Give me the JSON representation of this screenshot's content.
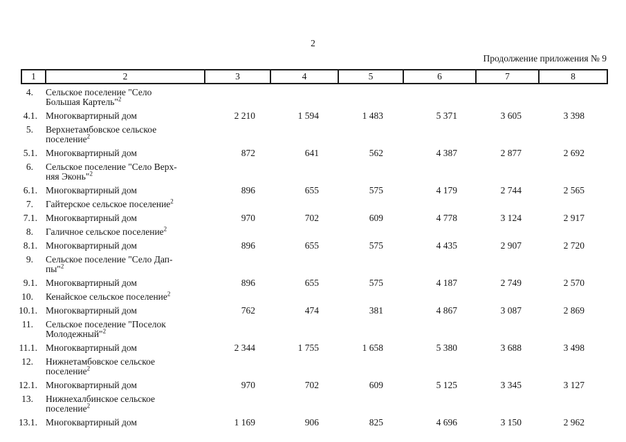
{
  "page": {
    "number": "2",
    "continuation_note": "Продолжение приложения № 9"
  },
  "table": {
    "columns": [
      "1",
      "2",
      "3",
      "4",
      "5",
      "6",
      "7",
      "8"
    ],
    "rows": [
      {
        "num": "4.",
        "kind": "settlement",
        "name_lines": [
          "Сельское поселение \"Село",
          "Большая Картель\""
        ],
        "footnote": "2",
        "values": [
          "",
          "",
          "",
          "",
          "",
          ""
        ]
      },
      {
        "num": "4.1.",
        "kind": "house",
        "name_lines": [
          "Многоквартирный дом"
        ],
        "footnote": "",
        "values": [
          "2 210",
          "1 594",
          "1 483",
          "5 371",
          "3 605",
          "3 398"
        ]
      },
      {
        "num": "5.",
        "kind": "settlement",
        "name_lines": [
          "Верхнетамбовское сельское",
          "поселение"
        ],
        "footnote": "2",
        "values": [
          "",
          "",
          "",
          "",
          "",
          ""
        ]
      },
      {
        "num": "5.1.",
        "kind": "house",
        "name_lines": [
          "Многоквартирный дом"
        ],
        "footnote": "",
        "values": [
          "872",
          "641",
          "562",
          "4 387",
          "2 877",
          "2 692"
        ]
      },
      {
        "num": "6.",
        "kind": "settlement",
        "name_lines": [
          "Сельское поселение \"Село Верх-",
          "няя Эконь\""
        ],
        "footnote": "2",
        "values": [
          "",
          "",
          "",
          "",
          "",
          ""
        ]
      },
      {
        "num": "6.1.",
        "kind": "house",
        "name_lines": [
          "Многоквартирный дом"
        ],
        "footnote": "",
        "values": [
          "896",
          "655",
          "575",
          "4 179",
          "2 744",
          "2 565"
        ]
      },
      {
        "num": "7.",
        "kind": "settlement",
        "name_lines": [
          "Гайтерское сельское поселение"
        ],
        "footnote": "2",
        "values": [
          "",
          "",
          "",
          "",
          "",
          ""
        ]
      },
      {
        "num": "7.1.",
        "kind": "house",
        "name_lines": [
          "Многоквартирный дом"
        ],
        "footnote": "",
        "values": [
          "970",
          "702",
          "609",
          "4 778",
          "3 124",
          "2 917"
        ]
      },
      {
        "num": "8.",
        "kind": "settlement",
        "name_lines": [
          "Галичное сельское поселение"
        ],
        "footnote": "2",
        "values": [
          "",
          "",
          "",
          "",
          "",
          ""
        ]
      },
      {
        "num": "8.1.",
        "kind": "house",
        "name_lines": [
          "Многоквартирный дом"
        ],
        "footnote": "",
        "values": [
          "896",
          "655",
          "575",
          "4 435",
          "2 907",
          "2 720"
        ]
      },
      {
        "num": "9.",
        "kind": "settlement",
        "name_lines": [
          "Сельское поселение \"Село Дап-",
          "пы\""
        ],
        "footnote": "2",
        "values": [
          "",
          "",
          "",
          "",
          "",
          ""
        ]
      },
      {
        "num": "9.1.",
        "kind": "house",
        "name_lines": [
          "Многоквартирный дом"
        ],
        "footnote": "",
        "values": [
          "896",
          "655",
          "575",
          "4 187",
          "2 749",
          "2 570"
        ]
      },
      {
        "num": "10.",
        "kind": "settlement",
        "name_lines": [
          "Кенайское сельское поселение"
        ],
        "footnote": "2",
        "values": [
          "",
          "",
          "",
          "",
          "",
          ""
        ]
      },
      {
        "num": "10.1.",
        "kind": "house",
        "name_lines": [
          "Многоквартирный дом"
        ],
        "footnote": "",
        "values": [
          "762",
          "474",
          "381",
          "4 867",
          "3 087",
          "2 869"
        ]
      },
      {
        "num": "11.",
        "kind": "settlement",
        "name_lines": [
          "Сельское поселение \"Поселок",
          "Молодежный\""
        ],
        "footnote": "2",
        "values": [
          "",
          "",
          "",
          "",
          "",
          ""
        ]
      },
      {
        "num": "11.1.",
        "kind": "house",
        "name_lines": [
          "Многоквартирный дом"
        ],
        "footnote": "",
        "values": [
          "2 344",
          "1 755",
          "1 658",
          "5 380",
          "3 688",
          "3 498"
        ]
      },
      {
        "num": "12.",
        "kind": "settlement",
        "name_lines": [
          "Нижнетамбовское сельское",
          "поселение"
        ],
        "footnote": "2",
        "values": [
          "",
          "",
          "",
          "",
          "",
          ""
        ]
      },
      {
        "num": "12.1.",
        "kind": "house",
        "name_lines": [
          "Многоквартирный дом"
        ],
        "footnote": "",
        "values": [
          "970",
          "702",
          "609",
          "5 125",
          "3 345",
          "3 127"
        ]
      },
      {
        "num": "13.",
        "kind": "settlement",
        "name_lines": [
          "Нижнехалбинское сельское",
          "поселение"
        ],
        "footnote": "2",
        "values": [
          "",
          "",
          "",
          "",
          "",
          ""
        ]
      },
      {
        "num": "13.1.",
        "kind": "house",
        "name_lines": [
          "Многоквартирный дом"
        ],
        "footnote": "",
        "values": [
          "1 169",
          "906",
          "825",
          "4 696",
          "3 150",
          "2 962"
        ]
      }
    ]
  }
}
